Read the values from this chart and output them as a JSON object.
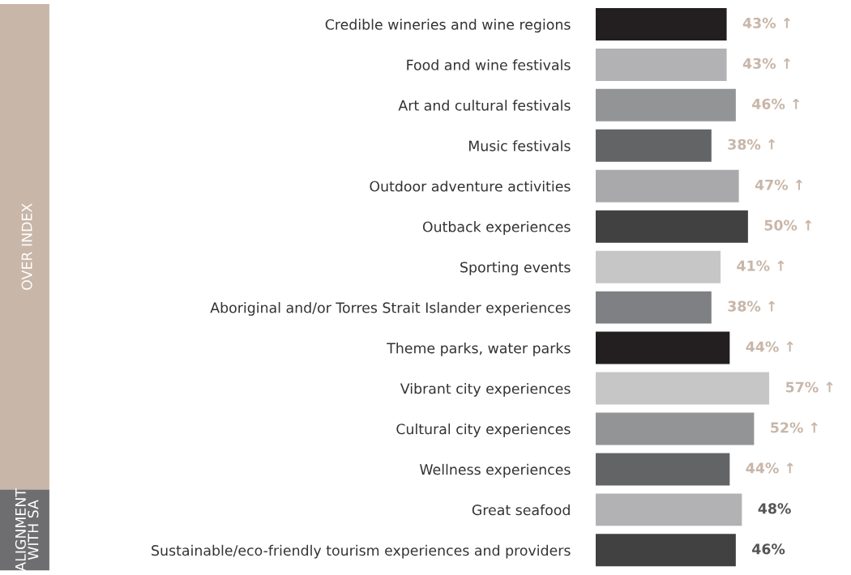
{
  "chart_data": {
    "type": "bar",
    "orientation": "horizontal",
    "categories": [
      "Credible wineries and wine regions",
      "Food and wine festivals",
      "Art and cultural festivals",
      "Music festivals",
      "Outdoor adventure activities",
      "Outback experiences",
      "Sporting events",
      "Aboriginal and/or Torres Strait Islander experiences",
      "Theme parks, water parks",
      "Vibrant city experiences",
      "Cultural city experiences",
      "Wellness experiences",
      "Great seafood",
      "Sustainable/eco-friendly tourism experiences and providers"
    ],
    "values": [
      43,
      43,
      46,
      38,
      47,
      50,
      41,
      38,
      44,
      57,
      52,
      44,
      48,
      46
    ],
    "colors": [
      "#231f20",
      "#b2b2b4",
      "#939496",
      "#636466",
      "#a9a9ab",
      "#414142",
      "#c6c6c7",
      "#7f8083",
      "#231f20",
      "#c6c6c7",
      "#939496",
      "#636466",
      "#b2b2b4",
      "#414142"
    ],
    "value_labels": [
      "43% ↑",
      "43% ↑",
      "46% ↑",
      "38% ↑",
      "47% ↑",
      "50% ↑",
      "41% ↑",
      "38% ↑",
      "44% ↑",
      "57% ↑",
      "52% ↑",
      "44% ↑",
      "48%",
      "46%"
    ],
    "tick_labels": "y",
    "annotations": [
      "OVER INDEX",
      "ALIGNMENT\nWITH SA"
    ]
  }
}
